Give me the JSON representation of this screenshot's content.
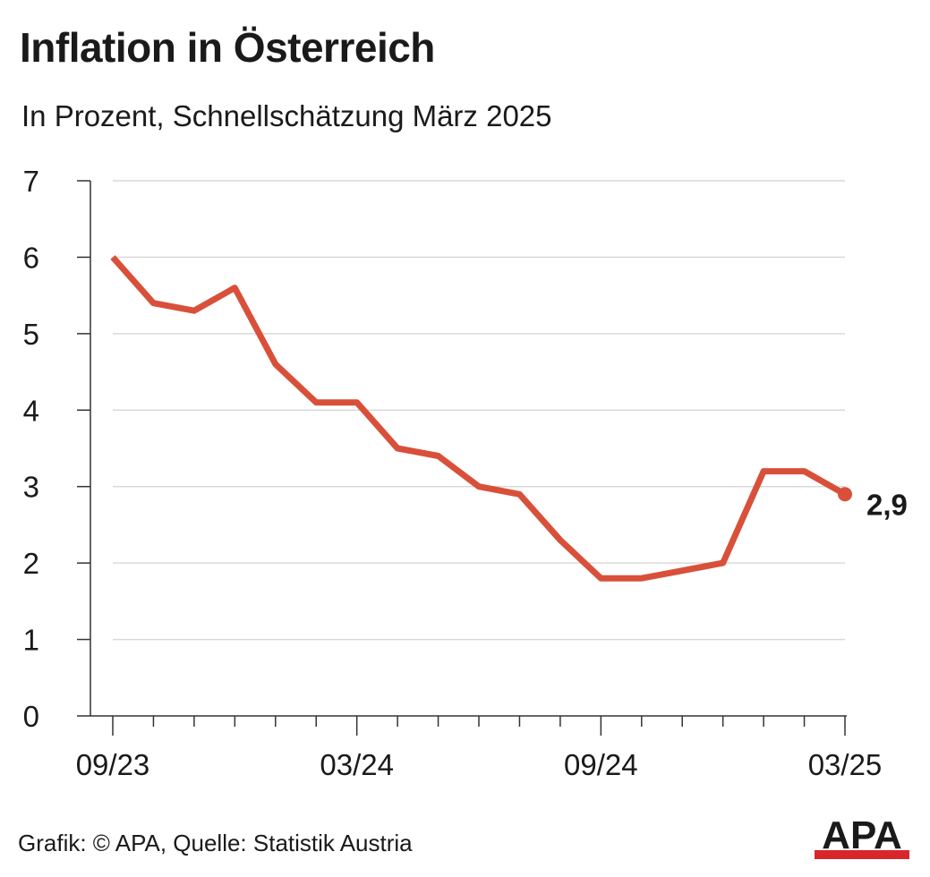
{
  "header": {
    "title": "Inflation in Österreich",
    "subtitle": "In Prozent, Schnellschätzung März 2025"
  },
  "footer": {
    "source": "Grafik: © APA, Quelle: Statistik Austria",
    "logo_text": "APA"
  },
  "colors": {
    "line": "#d9503a",
    "text": "#1a1a1a",
    "grid": "#d9d9d9",
    "axis": "#333333",
    "logo_red": "#d9262b"
  },
  "chart_data": {
    "type": "line",
    "title": "Inflation in Österreich",
    "subtitle": "In Prozent, Schnellschätzung März 2025",
    "xlabel": "",
    "ylabel": "",
    "x": [
      "09/23",
      "10/23",
      "11/23",
      "12/23",
      "01/24",
      "02/24",
      "03/24",
      "04/24",
      "05/24",
      "06/24",
      "07/24",
      "08/24",
      "09/24",
      "10/24",
      "11/24",
      "12/24",
      "01/25",
      "02/25",
      "03/25"
    ],
    "series": [
      {
        "values": [
          6.0,
          5.4,
          5.3,
          5.6,
          4.6,
          4.1,
          4.1,
          3.5,
          3.4,
          3.0,
          2.9,
          2.3,
          1.8,
          1.8,
          1.9,
          2.0,
          3.2,
          3.2,
          2.9
        ]
      }
    ],
    "ylim": [
      0,
      7
    ],
    "yticks": [
      0,
      1,
      2,
      3,
      4,
      5,
      6,
      7
    ],
    "xtick_labels": [
      "09/23",
      "03/24",
      "09/24",
      "03/25"
    ],
    "last_value_label": "2,9",
    "grid": "horizontal"
  }
}
